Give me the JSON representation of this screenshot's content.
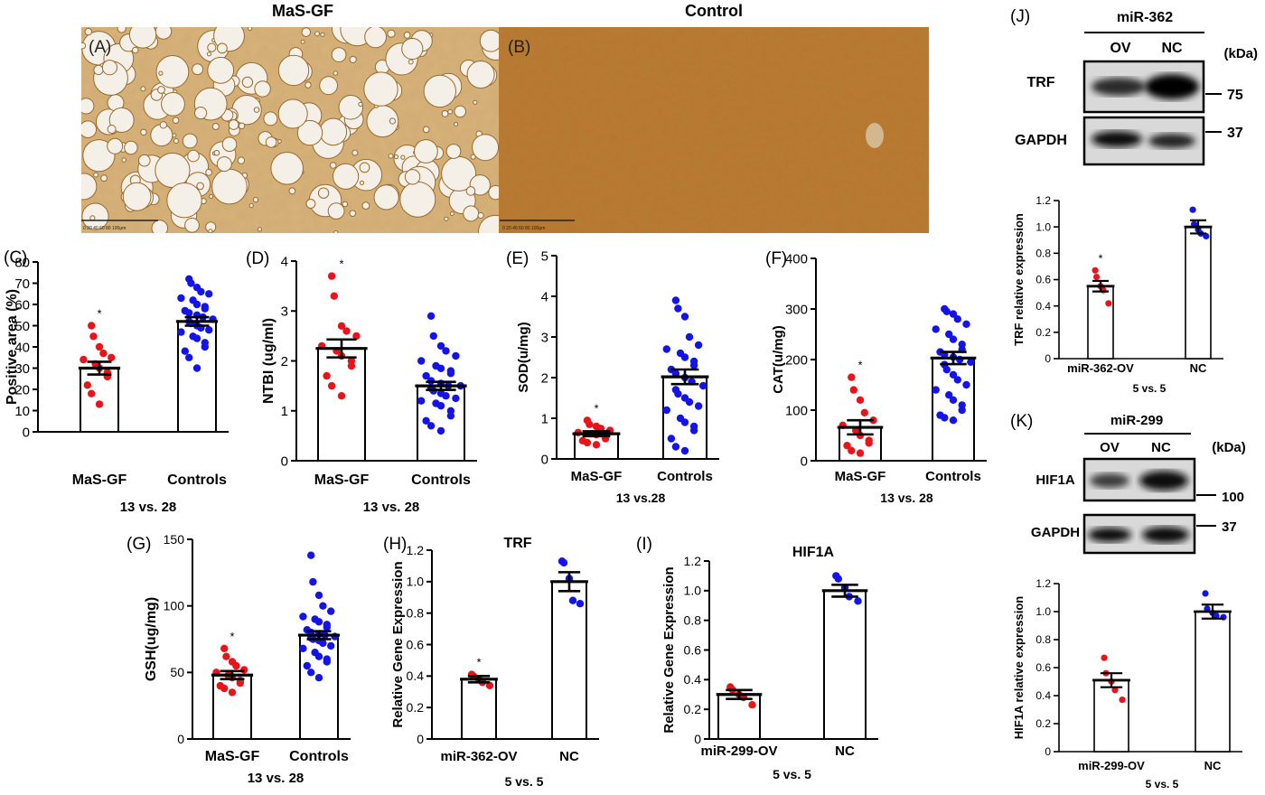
{
  "headers": {
    "masgf": "MaS-GF",
    "control": "Control"
  },
  "micro": {
    "A": {
      "label": "(A)",
      "scale_ticks": "0   20   40   60   80   100μm"
    },
    "B": {
      "label": "(B)",
      "scale_ticks": "0   20   40   60   80   100μm"
    }
  },
  "chart_data": [
    {
      "id": "C",
      "type": "bar",
      "panel_label": "(C)",
      "title": "",
      "xlabel": "",
      "ylabel": "Positive area (%)",
      "subtitle": "13 vs. 28",
      "categories": [
        "MaS-GF",
        "Controls"
      ],
      "values": [
        30,
        52
      ],
      "sem": [
        3,
        2
      ],
      "ylim": [
        0,
        80
      ],
      "yticks": [
        0,
        10,
        20,
        30,
        40,
        50,
        60,
        70,
        80
      ],
      "sig": [
        "*",
        ""
      ],
      "points": [
        [
          50,
          45,
          40,
          37,
          35,
          34,
          32,
          30,
          28,
          26,
          22,
          18,
          13
        ],
        [
          72,
          70,
          68,
          66,
          65,
          63,
          62,
          60,
          59,
          58,
          57,
          56,
          55,
          54,
          53,
          52,
          51,
          50,
          49,
          48,
          47,
          45,
          44,
          42,
          40,
          38,
          35,
          30
        ]
      ]
    },
    {
      "id": "D",
      "type": "bar",
      "panel_label": "(D)",
      "title": "",
      "xlabel": "",
      "ylabel": "NTBI (ug/ml)",
      "subtitle": "13 vs. 28",
      "categories": [
        "MaS-GF",
        "Controls"
      ],
      "values": [
        2.25,
        1.5
      ],
      "sem": [
        0.18,
        0.08
      ],
      "ylim": [
        0,
        4
      ],
      "yticks": [
        0,
        1,
        2,
        3,
        4
      ],
      "sig": [
        "*",
        ""
      ],
      "points": [
        [
          3.7,
          3.3,
          2.7,
          2.6,
          2.5,
          2.3,
          2.2,
          2.1,
          2.0,
          1.9,
          1.7,
          1.5,
          1.3
        ],
        [
          2.9,
          2.5,
          2.3,
          2.2,
          2.1,
          2.0,
          1.9,
          1.85,
          1.8,
          1.75,
          1.7,
          1.6,
          1.55,
          1.5,
          1.5,
          1.45,
          1.4,
          1.35,
          1.3,
          1.25,
          1.2,
          1.15,
          1.1,
          1.0,
          0.9,
          0.8,
          0.7,
          0.6
        ]
      ]
    },
    {
      "id": "E",
      "type": "bar",
      "panel_label": "(E)",
      "title": "",
      "xlabel": "",
      "ylabel": "SOD(u/mg)",
      "subtitle": "13 vs.28",
      "categories": [
        "MaS-GF",
        "Controls"
      ],
      "values": [
        0.62,
        2.02
      ],
      "sem": [
        0.06,
        0.18
      ],
      "ylim": [
        0,
        5
      ],
      "yticks": [
        0,
        1,
        2,
        3,
        4,
        5
      ],
      "sig": [
        "*",
        ""
      ],
      "points": [
        [
          0.95,
          0.85,
          0.8,
          0.75,
          0.7,
          0.65,
          0.62,
          0.6,
          0.55,
          0.5,
          0.45,
          0.4,
          0.35
        ],
        [
          3.9,
          3.7,
          3.5,
          3.0,
          2.8,
          2.7,
          2.6,
          2.5,
          2.4,
          2.3,
          2.2,
          2.1,
          2.0,
          1.9,
          1.8,
          1.7,
          1.6,
          1.5,
          1.4,
          1.3,
          1.2,
          1.0,
          0.9,
          0.8,
          0.7,
          0.5,
          0.3,
          0.2
        ]
      ]
    },
    {
      "id": "F",
      "type": "bar",
      "panel_label": "(F)",
      "title": "",
      "xlabel": "",
      "ylabel": "CAT(u/mg)",
      "subtitle": "13 vs. 28",
      "categories": [
        "MaS-GF",
        "Controls"
      ],
      "values": [
        66,
        203
      ],
      "sem": [
        14,
        12
      ],
      "ylim": [
        0,
        400
      ],
      "yticks": [
        0,
        100,
        200,
        300,
        400
      ],
      "sig": [
        "*",
        ""
      ],
      "points": [
        [
          165,
          140,
          120,
          95,
          80,
          70,
          60,
          50,
          40,
          35,
          30,
          20,
          15
        ],
        [
          300,
          295,
          290,
          280,
          270,
          260,
          250,
          240,
          230,
          220,
          215,
          210,
          205,
          200,
          195,
          190,
          180,
          170,
          160,
          150,
          140,
          130,
          120,
          110,
          100,
          90,
          85,
          80
        ]
      ]
    },
    {
      "id": "G",
      "type": "bar",
      "panel_label": "(G)",
      "title": "",
      "xlabel": "",
      "ylabel": "GSH(ug/mg)",
      "subtitle": "13 vs. 28",
      "categories": [
        "MaS-GF",
        "Controls"
      ],
      "values": [
        48,
        78
      ],
      "sem": [
        3,
        3
      ],
      "ylim": [
        0,
        150
      ],
      "yticks": [
        0,
        50,
        100,
        150
      ],
      "sig": [
        "*",
        ""
      ],
      "points": [
        [
          68,
          62,
          58,
          55,
          52,
          50,
          48,
          46,
          44,
          42,
          40,
          38,
          35
        ],
        [
          138,
          118,
          108,
          100,
          96,
          92,
          90,
          88,
          86,
          84,
          82,
          80,
          79,
          78,
          77,
          76,
          75,
          74,
          72,
          70,
          68,
          65,
          62,
          60,
          58,
          55,
          50,
          46
        ]
      ]
    },
    {
      "id": "H",
      "type": "bar",
      "panel_label": "(H)",
      "title": "TRF",
      "xlabel": "",
      "ylabel": "Relative Gene Expression",
      "subtitle": "5 vs. 5",
      "categories": [
        "miR-362-OV",
        "NC"
      ],
      "values": [
        0.38,
        1.0
      ],
      "sem": [
        0.02,
        0.06
      ],
      "ylim": [
        0,
        1.2
      ],
      "yticks": [
        0,
        0.2,
        0.4,
        0.6,
        0.8,
        1.0,
        1.2
      ],
      "sig": [
        "*",
        ""
      ],
      "points": [
        [
          0.41,
          0.4,
          0.38,
          0.36,
          0.34
        ],
        [
          1.13,
          1.12,
          1.02,
          0.88,
          0.86
        ]
      ]
    },
    {
      "id": "I",
      "type": "bar",
      "panel_label": "(I)",
      "title": "HIF1A",
      "xlabel": "",
      "ylabel": "Relative Gene Expression",
      "subtitle": "5 vs. 5",
      "categories": [
        "miR-299-OV",
        "NC"
      ],
      "values": [
        0.3,
        1.0
      ],
      "sem": [
        0.03,
        0.04
      ],
      "ylim": [
        0,
        1.2
      ],
      "yticks": [
        0,
        0.2,
        0.4,
        0.6,
        0.8,
        1.0,
        1.2
      ],
      "sig": [
        "",
        ""
      ],
      "points": [
        [
          0.35,
          0.33,
          0.3,
          0.28,
          0.23
        ],
        [
          1.1,
          1.08,
          1.02,
          0.96,
          0.93
        ]
      ]
    },
    {
      "id": "J",
      "type": "bar",
      "panel_label": "",
      "title": "",
      "xlabel": "",
      "ylabel": "TRF relative expression",
      "subtitle": "5 vs. 5",
      "categories": [
        "miR-362-OV",
        "NC"
      ],
      "values": [
        0.55,
        1.0
      ],
      "sem": [
        0.04,
        0.05
      ],
      "ylim": [
        0,
        1.2
      ],
      "yticks": [
        0,
        0.2,
        0.4,
        0.6,
        0.8,
        1.0,
        1.2
      ],
      "sig": [
        "*",
        ""
      ],
      "points": [
        [
          0.67,
          0.62,
          0.55,
          0.52,
          0.42
        ],
        [
          1.13,
          1.02,
          0.98,
          0.95,
          0.93
        ]
      ]
    },
    {
      "id": "K",
      "type": "bar",
      "panel_label": "",
      "title": "",
      "xlabel": "",
      "ylabel": "HIF1A relative expression",
      "subtitle": "5 vs. 5",
      "categories": [
        "miR-299-OV",
        "NC"
      ],
      "values": [
        0.51,
        1.0
      ],
      "sem": [
        0.05,
        0.05
      ],
      "ylim": [
        0,
        1.2
      ],
      "yticks": [
        0,
        0.2,
        0.4,
        0.6,
        0.8,
        1.0,
        1.2
      ],
      "sig": [
        "",
        ""
      ],
      "points": [
        [
          0.67,
          0.56,
          0.5,
          0.44,
          0.37
        ],
        [
          1.13,
          1.02,
          0.99,
          0.97,
          0.96
        ]
      ]
    }
  ],
  "blots": {
    "J": {
      "label": "(J)",
      "mirna": "miR-362",
      "lanes": [
        "OV",
        "NC"
      ],
      "unit": "(kDa)",
      "bands": [
        {
          "name": "TRF",
          "marker": "75"
        },
        {
          "name": "GAPDH",
          "marker": "37"
        }
      ]
    },
    "K": {
      "label": "(K)",
      "mirna": "miR-299",
      "lanes": [
        "OV",
        "NC"
      ],
      "unit": "(kDa)",
      "bands": [
        {
          "name": "HIF1A",
          "marker": "100"
        },
        {
          "name": "GAPDH",
          "marker": "37"
        }
      ]
    }
  },
  "colors": {
    "red": "#e8141c",
    "blue": "#1414e8",
    "axis": "#000000",
    "stain_light": "#c9a05e",
    "stain_dark": "#b0702a"
  }
}
